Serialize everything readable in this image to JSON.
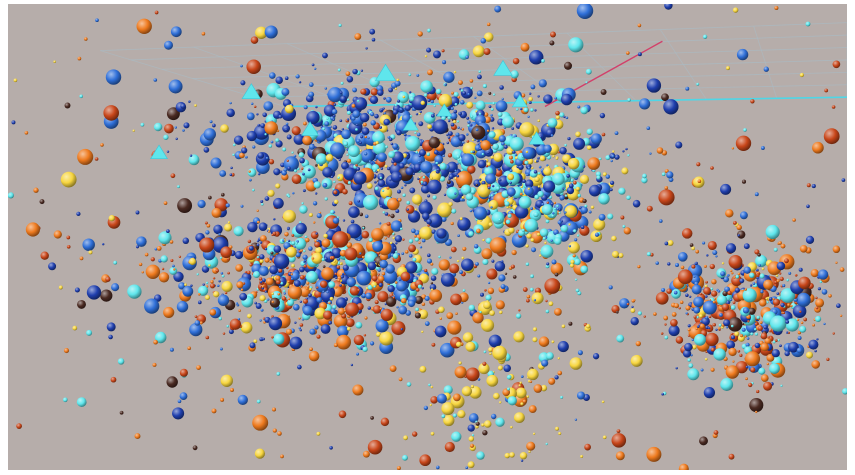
{
  "chart_data": {
    "type": "scatter",
    "title": "",
    "xlabel": "",
    "ylabel": "",
    "zlabel": "",
    "grid": true,
    "legend": "none",
    "projection": "3d-perspective",
    "background_color": "#b6adaa",
    "grid_color": "#a9bcc6",
    "x_axis_color": "#4fd6e6",
    "z_axis_color": "#d2406a",
    "palette": {
      "dark_blue": "#1f3fae",
      "blue": "#2f6fd8",
      "cyan": "#5fe6ec",
      "yellow": "#f7d640",
      "orange": "#ee7a1e",
      "red_orange": "#c8461a",
      "dark_brown": "#4a2a22"
    },
    "marker_icon": "triangle-marker-icon",
    "markers": [
      {
        "x": 0.18,
        "y": 0.68,
        "size": 1.0
      },
      {
        "x": 0.29,
        "y": 0.81,
        "size": 1.1
      },
      {
        "x": 0.36,
        "y": 0.73,
        "size": 1.0
      },
      {
        "x": 0.45,
        "y": 0.85,
        "size": 1.2
      },
      {
        "x": 0.48,
        "y": 0.74,
        "size": 0.9
      },
      {
        "x": 0.52,
        "y": 0.77,
        "size": 0.9
      },
      {
        "x": 0.59,
        "y": 0.86,
        "size": 1.1
      },
      {
        "x": 0.61,
        "y": 0.79,
        "size": 0.9
      },
      {
        "x": 0.63,
        "y": 0.71,
        "size": 0.9
      }
    ],
    "clusters": [
      {
        "name": "",
        "x": 0.48,
        "y": 0.7,
        "spread_x": 0.11,
        "spread_y": 0.08,
        "count": 950,
        "weights": {
          "dark_blue": 5,
          "blue": 3,
          "cyan": 2.5,
          "yellow": 1.2,
          "orange": 0.6,
          "red_orange": 0.6,
          "dark_brown": 0.2
        }
      },
      {
        "name": "",
        "x": 0.62,
        "y": 0.59,
        "spread_x": 0.05,
        "spread_y": 0.07,
        "count": 420,
        "weights": {
          "dark_blue": 1.5,
          "blue": 2,
          "cyan": 4,
          "yellow": 2.5,
          "orange": 0.4,
          "red_orange": 0.2,
          "dark_brown": 0.1
        }
      },
      {
        "name": "",
        "x": 0.38,
        "y": 0.41,
        "spread_x": 0.09,
        "spread_y": 0.06,
        "count": 800,
        "weights": {
          "dark_blue": 3,
          "blue": 2.5,
          "cyan": 2,
          "yellow": 1,
          "orange": 3,
          "red_orange": 2.5,
          "dark_brown": 0.4
        }
      },
      {
        "name": "",
        "x": 0.88,
        "y": 0.34,
        "spread_x": 0.05,
        "spread_y": 0.07,
        "count": 480,
        "weights": {
          "dark_blue": 2,
          "blue": 2,
          "cyan": 2,
          "yellow": 0.6,
          "orange": 3,
          "red_orange": 3,
          "dark_brown": 0.3
        }
      },
      {
        "name": "",
        "x": 0.59,
        "y": 0.17,
        "spread_x": 0.05,
        "spread_y": 0.08,
        "count": 120,
        "weights": {
          "dark_blue": 0.5,
          "blue": 1,
          "cyan": 1.5,
          "yellow": 5,
          "orange": 0.5,
          "red_orange": 0.3,
          "dark_brown": 0.1
        }
      },
      {
        "name": "",
        "x": 0.5,
        "y": 0.5,
        "spread_x": 0.32,
        "spread_y": 0.28,
        "count": 650,
        "weights": {
          "dark_blue": 1.2,
          "blue": 1.5,
          "cyan": 1.5,
          "yellow": 1,
          "orange": 2.2,
          "red_orange": 2,
          "dark_brown": 0.7
        }
      }
    ]
  }
}
